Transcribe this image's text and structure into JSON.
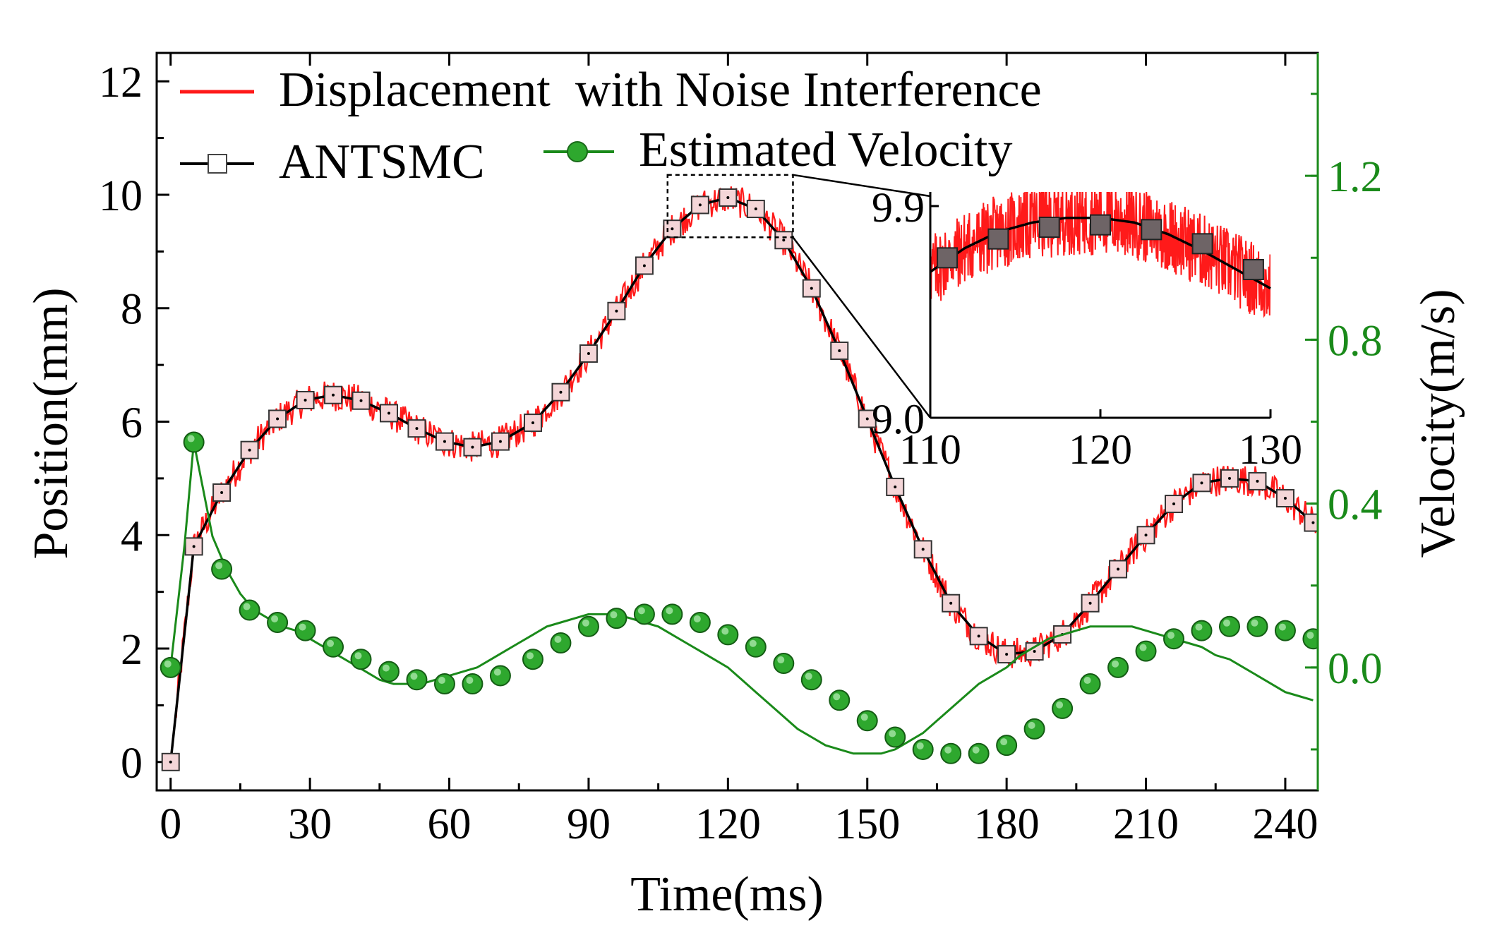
{
  "chart_data": {
    "type": "line",
    "xlabel": "Time(ms)",
    "ylabel_left": "Position(mm)",
    "ylabel_right": "Velocity(m/s)",
    "xlim": [
      -3,
      247
    ],
    "ylim_left": [
      -0.5,
      12.5
    ],
    "ylim_right": [
      -0.3,
      1.5
    ],
    "x_ticks": [
      0,
      30,
      60,
      90,
      120,
      150,
      180,
      210,
      240
    ],
    "y_left_ticks": [
      0,
      2,
      4,
      6,
      8,
      10,
      12
    ],
    "y_right_ticks": [
      0.0,
      0.4,
      0.8,
      1.2
    ],
    "x_tick_labels": [
      "0",
      "30",
      "60",
      "90",
      "120",
      "150",
      "180",
      "210",
      "240"
    ],
    "y_left_tick_labels": [
      "0",
      "2",
      "4",
      "6",
      "8",
      "10",
      "12"
    ],
    "y_right_tick_labels": [
      "0.0",
      "0.4",
      "0.8",
      "1.2"
    ],
    "colors": {
      "displacement": "#ff1a1a",
      "antsmc": "#000000",
      "marker_fill": "#f4d6d8",
      "velocity": "#1a8a1a",
      "velocity_marker": "#2ea82e",
      "right_axis": "#1a8a1a"
    },
    "legend": [
      {
        "label": "Displacement  with Noise Interference",
        "series": "displacement"
      },
      {
        "label": "ANTSMC",
        "series": "antsmc"
      },
      {
        "label": "Estimated Velocity",
        "series": "velocity"
      }
    ],
    "series": [
      {
        "name": "ANTSMC",
        "axis": "left",
        "x": [
          0,
          5,
          11,
          17,
          23,
          29,
          35,
          41,
          47,
          53,
          59,
          65,
          71,
          78,
          84,
          90,
          96,
          102,
          108,
          114,
          120,
          126,
          132,
          138,
          144,
          150,
          156,
          162,
          168,
          174,
          180,
          186,
          192,
          198,
          204,
          210,
          216,
          222,
          228,
          234,
          240,
          246
        ],
        "values": [
          0,
          3.8,
          4.75,
          5.5,
          6.05,
          6.38,
          6.47,
          6.37,
          6.15,
          5.88,
          5.65,
          5.55,
          5.65,
          5.98,
          6.52,
          7.2,
          7.95,
          8.75,
          9.4,
          9.82,
          9.95,
          9.75,
          9.2,
          8.35,
          7.25,
          6.05,
          4.85,
          3.75,
          2.8,
          2.22,
          1.9,
          1.95,
          2.25,
          2.8,
          3.4,
          4.0,
          4.55,
          4.92,
          5.0,
          4.95,
          4.65,
          4.22
        ]
      },
      {
        "name": "Displacement  with Noise Interference",
        "axis": "left",
        "noise_amplitude_mm": 0.28
      },
      {
        "name": "Estimated Velocity",
        "axis": "right",
        "x": [
          0,
          3,
          5,
          9,
          12,
          15,
          18,
          21,
          24,
          27,
          30,
          33,
          36,
          39,
          42,
          45,
          48,
          51,
          54,
          57,
          60,
          63,
          66,
          69,
          72,
          75,
          78,
          81,
          84,
          87,
          90,
          93,
          96,
          99,
          102,
          105,
          108,
          111,
          114,
          117,
          120,
          123,
          126,
          129,
          132,
          135,
          138,
          141,
          144,
          147,
          150,
          153,
          156,
          159,
          162,
          165,
          168,
          171,
          174,
          177,
          180,
          183,
          186,
          189,
          192,
          195,
          198,
          201,
          204,
          207,
          210,
          213,
          216,
          219,
          222,
          225,
          228,
          231,
          234,
          237,
          240,
          243,
          246
        ],
        "values": [
          0.0,
          0.3,
          0.55,
          0.32,
          0.24,
          0.18,
          0.14,
          0.12,
          0.1,
          0.09,
          0.07,
          0.05,
          0.03,
          0.01,
          -0.01,
          -0.03,
          -0.04,
          -0.04,
          -0.04,
          -0.03,
          -0.02,
          -0.01,
          0.0,
          0.02,
          0.04,
          0.06,
          0.08,
          0.1,
          0.11,
          0.12,
          0.13,
          0.13,
          0.13,
          0.12,
          0.11,
          0.1,
          0.08,
          0.06,
          0.04,
          0.02,
          0.0,
          -0.03,
          -0.06,
          -0.09,
          -0.12,
          -0.15,
          -0.17,
          -0.19,
          -0.2,
          -0.21,
          -0.21,
          -0.21,
          -0.2,
          -0.18,
          -0.16,
          -0.13,
          -0.1,
          -0.07,
          -0.04,
          -0.02,
          0.0,
          0.03,
          0.05,
          0.07,
          0.08,
          0.09,
          0.1,
          0.1,
          0.1,
          0.1,
          0.09,
          0.08,
          0.07,
          0.06,
          0.05,
          0.03,
          0.02,
          0.0,
          -0.02,
          -0.04,
          -0.06,
          -0.07,
          -0.08
        ],
        "marker_x": [
          0,
          5,
          11,
          17,
          23,
          29,
          35,
          41,
          47,
          53,
          59,
          65,
          71,
          78,
          84,
          90,
          96,
          102,
          108,
          114,
          120,
          126,
          132,
          138,
          144,
          150,
          156,
          162,
          168,
          174,
          180,
          186,
          192,
          198,
          204,
          210,
          216,
          222,
          228,
          234,
          240,
          246
        ],
        "marker_values": [
          0.0,
          0.55,
          0.24,
          0.14,
          0.11,
          0.09,
          0.05,
          0.02,
          -0.01,
          -0.03,
          -0.04,
          -0.04,
          -0.02,
          0.02,
          0.06,
          0.1,
          0.12,
          0.13,
          0.13,
          0.11,
          0.08,
          0.05,
          0.01,
          -0.03,
          -0.08,
          -0.13,
          -0.17,
          -0.2,
          -0.21,
          -0.21,
          -0.19,
          -0.15,
          -0.1,
          -0.04,
          0.0,
          0.04,
          0.07,
          0.09,
          0.1,
          0.1,
          0.09,
          0.07
        ]
      }
    ],
    "inset": {
      "xlim": [
        110,
        130
      ],
      "ylim": [
        9.0,
        9.93
      ],
      "x_ticks": [
        110,
        120,
        130
      ],
      "x_tick_labels": [
        "110",
        "120",
        "130"
      ],
      "y_ticks": [
        9.0,
        9.9
      ],
      "y_tick_labels": [
        "9.0",
        "9.9"
      ],
      "curve_x": [
        110,
        112,
        114,
        116,
        118,
        120,
        122,
        124,
        126,
        128,
        130
      ],
      "curve_values": [
        9.62,
        9.72,
        9.79,
        9.83,
        9.85,
        9.85,
        9.83,
        9.78,
        9.71,
        9.63,
        9.55
      ],
      "marker_x": [
        111,
        114,
        117,
        120,
        123,
        126,
        129
      ],
      "marker_values": [
        9.68,
        9.76,
        9.81,
        9.82,
        9.8,
        9.74,
        9.63
      ],
      "source_box_x": [
        107,
        134
      ],
      "source_box_y": [
        9.25,
        10.35
      ]
    }
  }
}
